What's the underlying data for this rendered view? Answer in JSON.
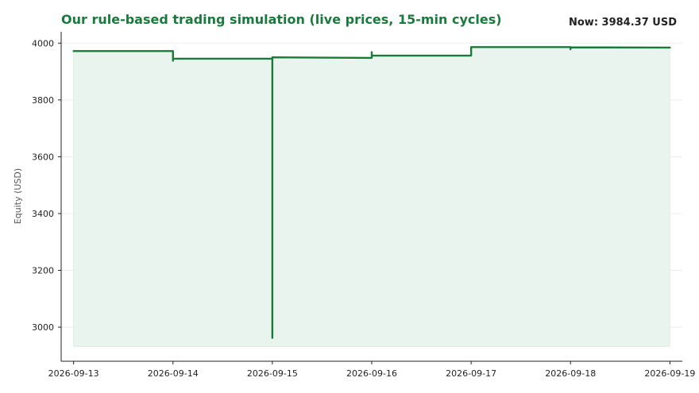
{
  "chart_data": {
    "type": "line",
    "title": "Our rule-based trading simulation (live prices, 15-min cycles)",
    "status_label": "Now: 3984.37 USD",
    "xlabel": "",
    "ylabel": "Equity (USD)",
    "ylim": [
      2880,
      4040
    ],
    "yticks": [
      3000,
      3200,
      3400,
      3600,
      3800,
      4000
    ],
    "xlim": [
      "2026-09-12 21:00",
      "2026-09-19 03:00"
    ],
    "xticks": [
      "2026-09-13",
      "2026-09-14",
      "2026-09-15",
      "2026-09-16",
      "2026-09-17",
      "2026-09-18",
      "2026-09-19"
    ],
    "grid": "y",
    "fill_baseline": 2932,
    "line_color": "#1a7a3c",
    "fill_color": "#eaf4ee",
    "title_color": "#1a7a3c",
    "series": [
      {
        "points": [
          [
            "2026-09-13 00:00",
            3972
          ],
          [
            "2026-09-14 00:00",
            3972
          ],
          [
            "2026-09-14 00:00",
            3938
          ],
          [
            "2026-09-14 00:00",
            3945
          ],
          [
            "2026-09-15 00:00",
            3945
          ],
          [
            "2026-09-15 00:00",
            2962
          ],
          [
            "2026-09-15 00:00",
            3950
          ],
          [
            "2026-09-16 00:00",
            3948
          ],
          [
            "2026-09-16 00:00",
            3968
          ],
          [
            "2026-09-16 00:00",
            3956
          ],
          [
            "2026-09-17 00:00",
            3956
          ],
          [
            "2026-09-17 00:00",
            3986
          ],
          [
            "2026-09-18 00:00",
            3986
          ],
          [
            "2026-09-18 00:00",
            3978
          ],
          [
            "2026-09-18 00:00",
            3985
          ],
          [
            "2026-09-19 00:00",
            3984.37
          ]
        ]
      }
    ]
  }
}
